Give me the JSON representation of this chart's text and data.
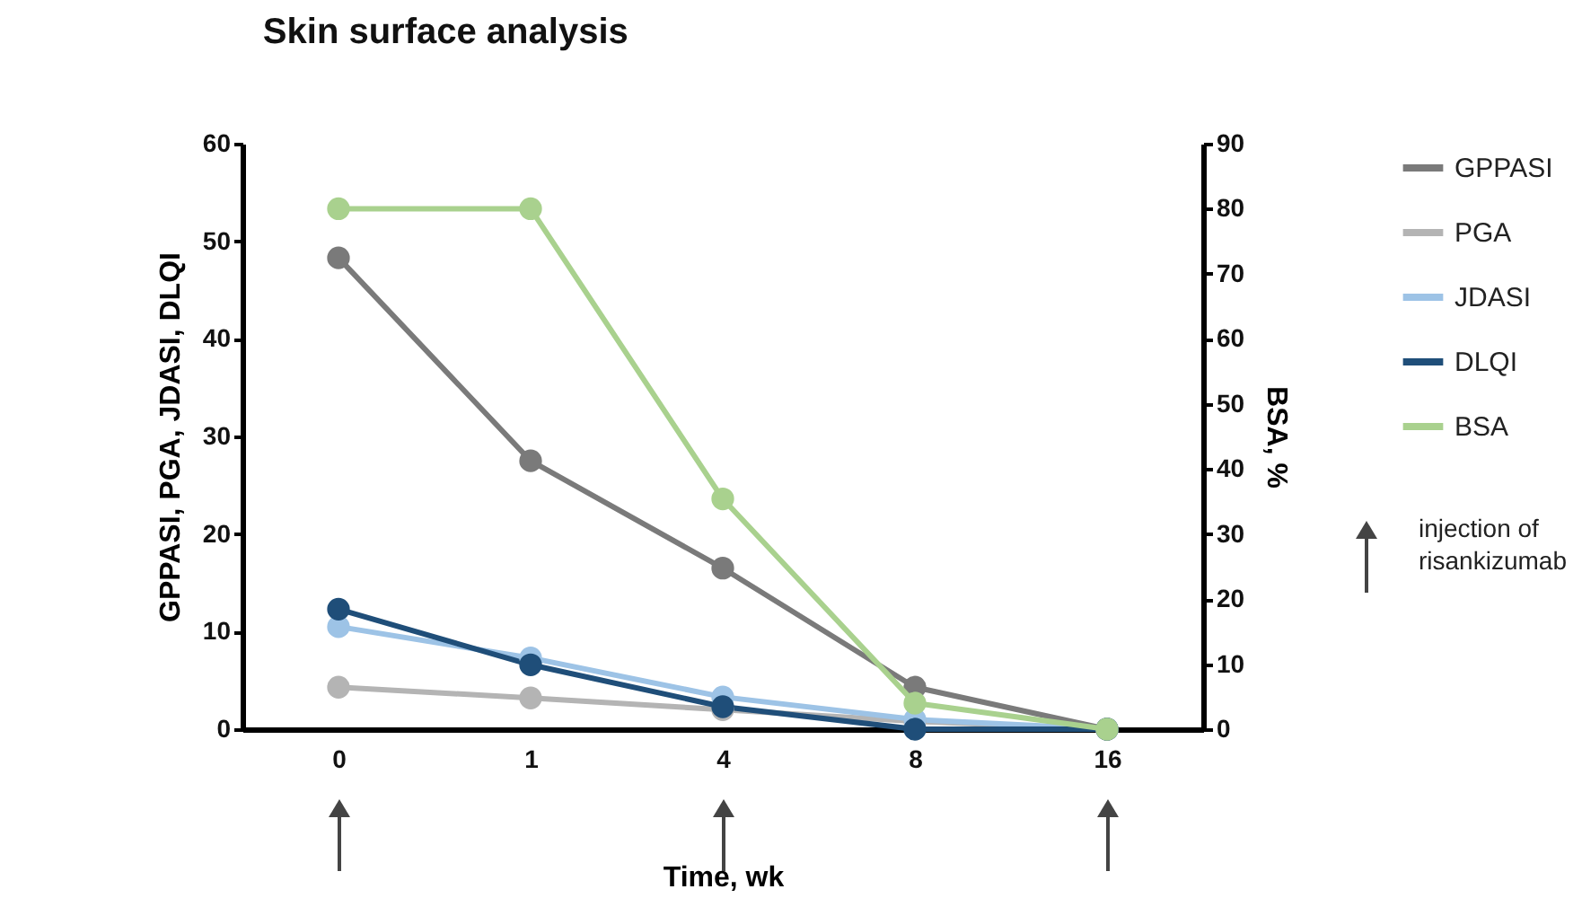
{
  "chart_data": {
    "type": "line",
    "title": "Skin surface analysis",
    "xlabel": "Time, wk",
    "ylabel": "GPPASI, PGA, JDASI, DLQI",
    "y2label": "BSA, %",
    "categories": [
      "0",
      "1",
      "4",
      "8",
      "16"
    ],
    "series": [
      {
        "name": "GPPASI",
        "color": "#7a7a7a",
        "values": [
          48.3,
          27.5,
          16.5,
          4.3,
          0
        ]
      },
      {
        "name": "PGA",
        "color": "#b4b4b4",
        "values": [
          4.3,
          3.2,
          2.0,
          0.8,
          0
        ]
      },
      {
        "name": "JDASI",
        "color": "#9dc3e6",
        "values": [
          10.5,
          7.3,
          3.3,
          1.0,
          0
        ]
      },
      {
        "name": "DLQI",
        "color": "#1f4e79",
        "values": [
          12.3,
          6.6,
          2.3,
          0,
          0
        ]
      },
      {
        "name": "BSA",
        "color": "#a9d18e",
        "values": [
          80,
          80,
          35.4,
          4,
          0
        ],
        "axis": "y2"
      }
    ],
    "ylim": [
      0,
      60
    ],
    "yticks": [
      0,
      10,
      20,
      30,
      40,
      50,
      60
    ],
    "y2lim": [
      0,
      90
    ],
    "y2ticks": [
      0,
      10,
      20,
      30,
      40,
      50,
      60,
      70,
      80,
      90
    ],
    "marker": "circle",
    "line_style": "solid",
    "grid": false,
    "legend": "top right",
    "annotations": [
      "injection of risankizumab"
    ]
  }
}
